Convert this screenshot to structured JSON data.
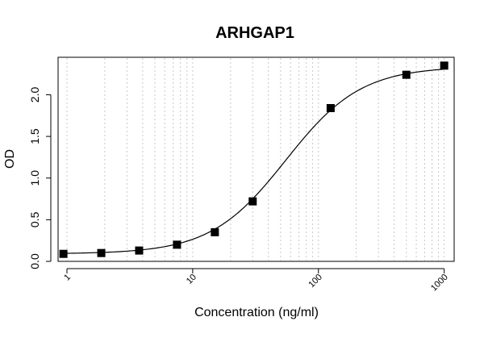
{
  "chart_data": {
    "type": "scatter",
    "title": "ARHGAP1",
    "xlabel": "Concentration (ng/ml)",
    "ylabel": "OD",
    "x_scale": "log",
    "xlim": [
      0.85,
      1200
    ],
    "ylim": [
      0,
      2.45
    ],
    "x_ticks": [
      1,
      10,
      100,
      1000
    ],
    "x_tick_labels": [
      "1",
      "10",
      "100",
      "1000"
    ],
    "y_ticks": [
      0.0,
      0.5,
      1.0,
      1.5,
      2.0
    ],
    "y_tick_labels": [
      "0.0",
      "0.5",
      "1.0",
      "1.5",
      "2.0"
    ],
    "grid": "vertical dotted at log minor ticks",
    "series": [
      {
        "x": [
          0.9375,
          1.875,
          3.75,
          7.5,
          15,
          30,
          125,
          500,
          1000
        ],
        "y": [
          0.09,
          0.1,
          0.13,
          0.2,
          0.35,
          0.72,
          1.84,
          2.24,
          2.35
        ]
      }
    ],
    "fit": {
      "type": "4PL",
      "bottom": 0.09,
      "top": 2.34,
      "ec50": 55,
      "hill": 1.45
    }
  }
}
